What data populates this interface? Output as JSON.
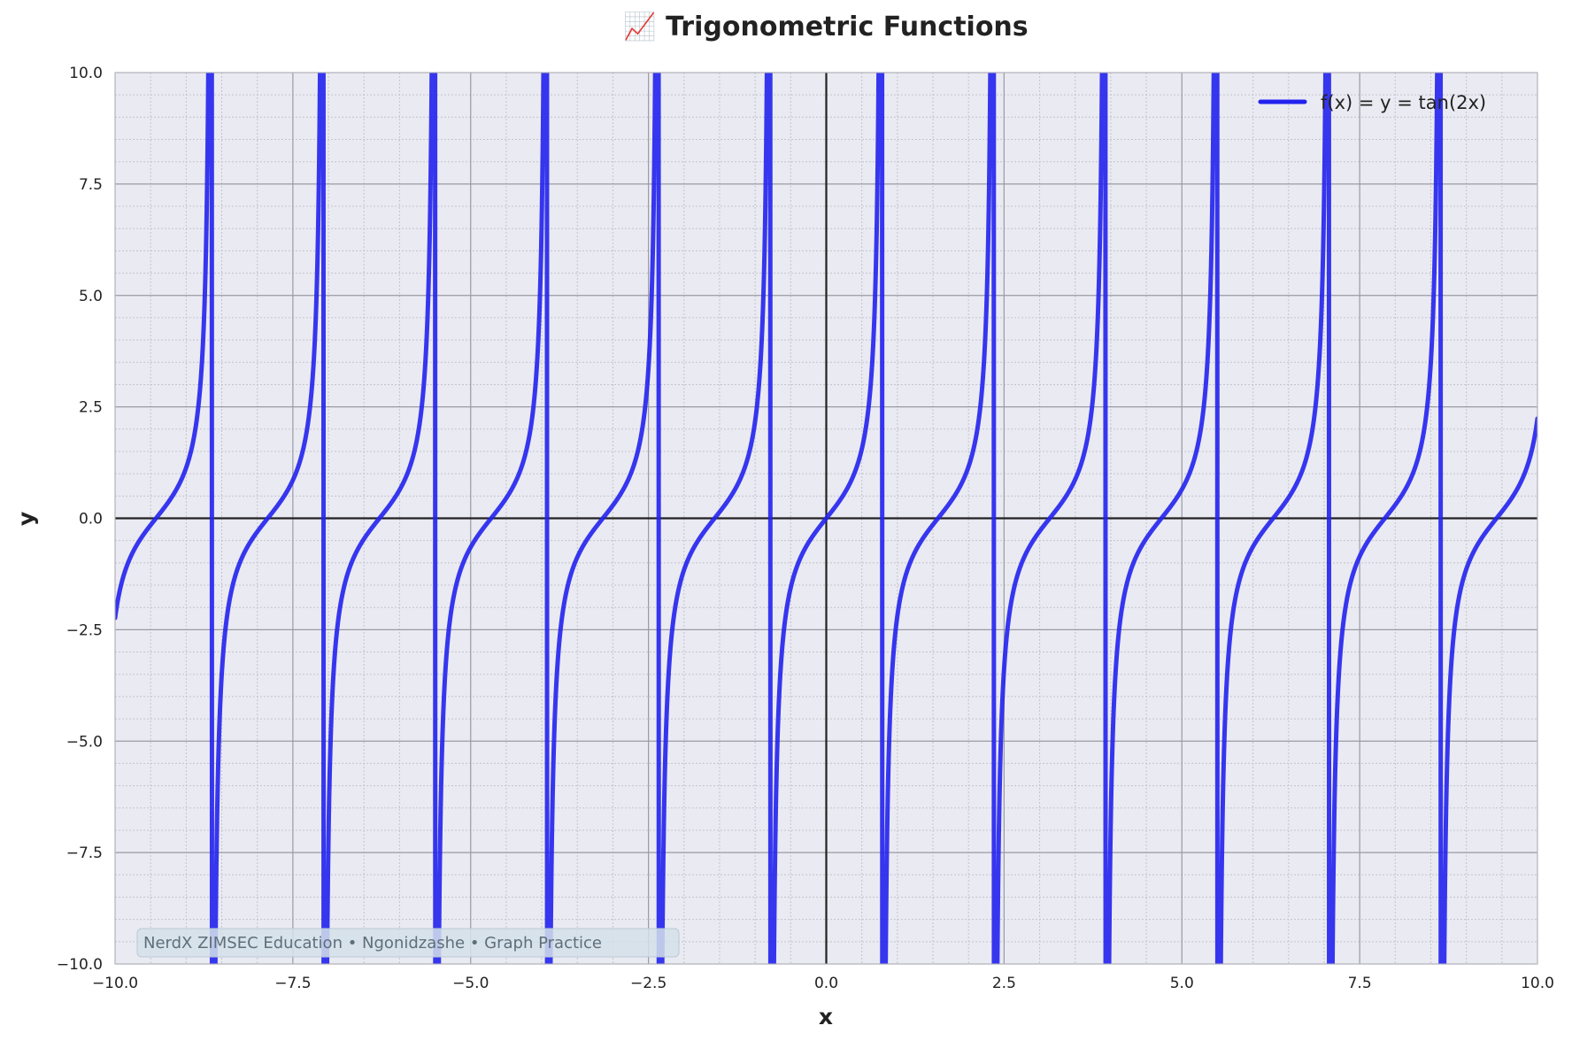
{
  "chart_data": {
    "type": "line",
    "title": "📈 Trigonometric Functions",
    "xlabel": "x",
    "ylabel": "y",
    "xlim": [
      -10,
      10
    ],
    "ylim": [
      -10,
      10
    ],
    "xticks": [
      -10,
      -7.5,
      -5,
      -2.5,
      0,
      2.5,
      5,
      7.5,
      10
    ],
    "yticks": [
      -10,
      -7.5,
      -5,
      -2.5,
      0,
      2.5,
      5,
      7.5,
      10
    ],
    "xtick_labels": [
      "−10.0",
      "−7.5",
      "−5.0",
      "−2.5",
      "0.0",
      "2.5",
      "5.0",
      "7.5",
      "10.0"
    ],
    "ytick_labels": [
      "−10.0",
      "−7.5",
      "−5.0",
      "−2.5",
      "0.0",
      "2.5",
      "5.0",
      "7.5",
      "10.0"
    ],
    "grid": true,
    "minor_grid": true,
    "legend_position": "top-right",
    "series": [
      {
        "name": "f(x) = y = tan(2x)",
        "function": "tan(2x)",
        "color": "#2222ee",
        "x_range": [
          -10,
          10
        ],
        "sample_points": [
          {
            "x": -10,
            "y": -2.24
          },
          {
            "x": -9.5,
            "y": -0.15
          },
          {
            "x": -9,
            "y": 0.44
          },
          {
            "x": -8,
            "y": -0.29
          },
          {
            "x": -7.5,
            "y": 0.86
          },
          {
            "x": -6,
            "y": -0.64
          },
          {
            "x": -5,
            "y": -0.65
          },
          {
            "x": -3,
            "y": 0.29
          },
          {
            "x": -2,
            "y": 1.16
          },
          {
            "x": -1,
            "y": 2.19
          },
          {
            "x": -0.5,
            "y": -1.56
          },
          {
            "x": 0,
            "y": 0
          },
          {
            "x": 0.5,
            "y": 1.56
          },
          {
            "x": 1,
            "y": -2.19
          },
          {
            "x": 2,
            "y": -1.16
          },
          {
            "x": 3,
            "y": -0.29
          },
          {
            "x": 5,
            "y": 0.65
          },
          {
            "x": 6,
            "y": 0.64
          },
          {
            "x": 7.5,
            "y": -0.86
          },
          {
            "x": 8,
            "y": 0.29
          },
          {
            "x": 9,
            "y": -0.44
          },
          {
            "x": 10,
            "y": 2.24
          }
        ]
      }
    ],
    "watermark": "NerdX ZIMSEC Education • Ngonidzashe • Graph Practice"
  },
  "colors": {
    "plot_background": "#eaeaf2",
    "major_grid": "#9a9aa2",
    "minor_grid": "#c4c4cc",
    "zero_axis": "#222222",
    "line": "#2222ee",
    "watermark_box": "#d4e0ea"
  }
}
